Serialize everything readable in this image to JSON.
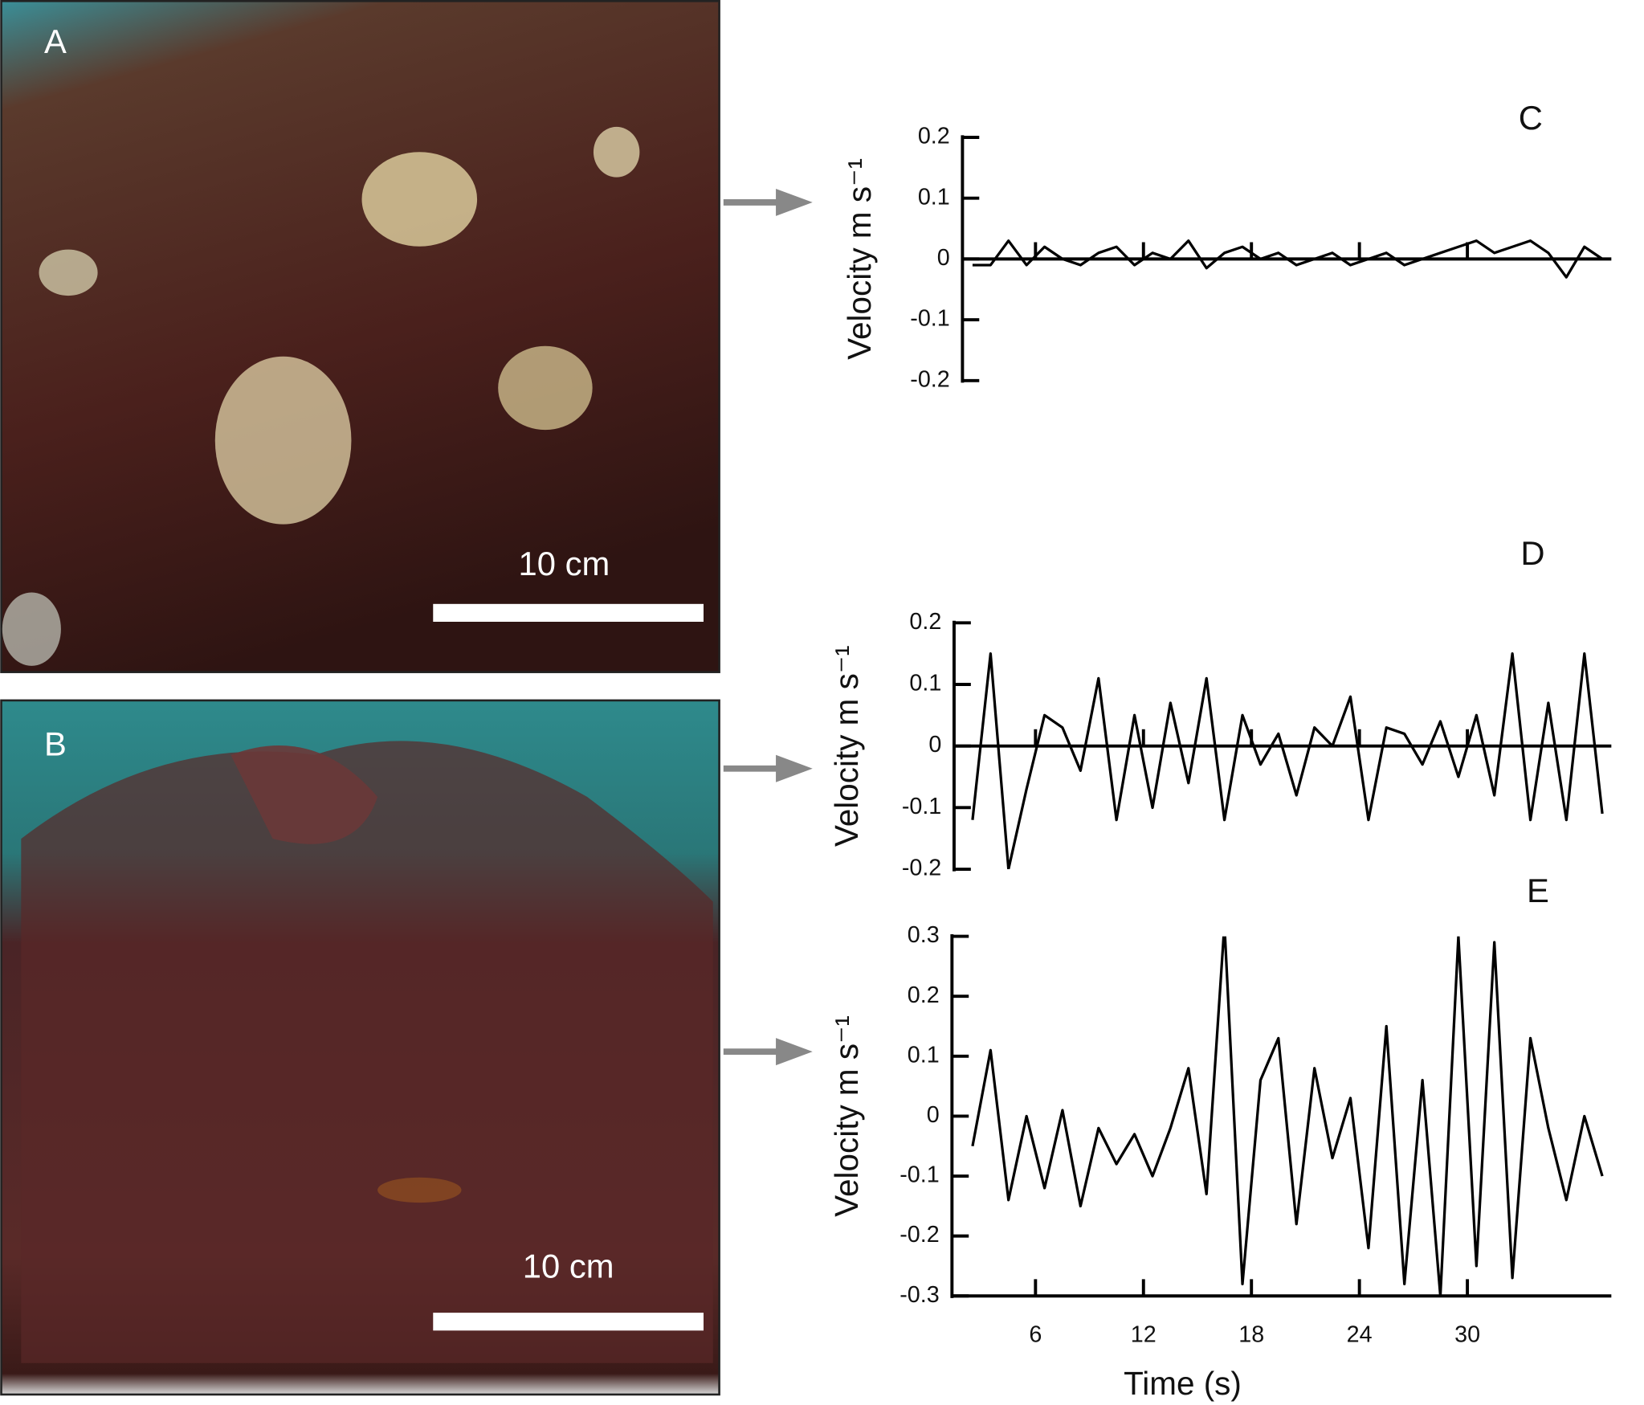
{
  "panels": [
    {
      "label": "A",
      "scale_bar": "10 cm"
    },
    {
      "label": "B",
      "scale_bar": "10 cm"
    }
  ],
  "chart_data": [
    {
      "type": "line",
      "title": "C",
      "y_label": "Velocity m s⁻¹",
      "ylim": [
        -0.2,
        0.2
      ],
      "yticks": [
        -0.2,
        -0.1,
        0,
        0.1,
        0.2
      ],
      "xlim": [
        2,
        38
      ],
      "xticks": [
        6,
        12,
        18,
        24,
        30
      ],
      "x": [
        2.5,
        3.5,
        4.5,
        5.5,
        6.5,
        7.5,
        8.5,
        9.5,
        10.5,
        11.5,
        12.5,
        13.5,
        14.5,
        15.5,
        16.5,
        17.5,
        18.5,
        19.5,
        20.5,
        21.5,
        22.5,
        23.5,
        24.5,
        25.5,
        26.5,
        27.5,
        28.5,
        29.5,
        30.5,
        31.5,
        32.5,
        33.5,
        34.5,
        35.5,
        36.5,
        37.5
      ],
      "series": [
        {
          "color": "#000000",
          "values": [
            -0.01,
            -0.01,
            0.03,
            -0.01,
            0.02,
            0.0,
            -0.01,
            0.01,
            0.02,
            -0.01,
            0.01,
            0.0,
            0.03,
            -0.015,
            0.01,
            0.02,
            0.0,
            0.01,
            -0.01,
            0.0,
            0.01,
            -0.01,
            0.0,
            0.01,
            -0.01,
            0.0,
            0.01,
            0.02,
            0.03,
            0.01,
            0.02,
            0.03,
            0.01,
            -0.03,
            0.02,
            0.0
          ]
        }
      ]
    },
    {
      "type": "line",
      "title": "D",
      "y_label": "Velocity m s⁻¹",
      "ylim": [
        -0.2,
        0.2
      ],
      "yticks": [
        -0.2,
        -0.1,
        0,
        0.1,
        0.2
      ],
      "xlim": [
        2,
        38
      ],
      "xticks": [
        6,
        12,
        18,
        24,
        30
      ],
      "x": [
        2.5,
        3.5,
        4.5,
        5.5,
        6.5,
        7.5,
        8.5,
        9.5,
        10.5,
        11.5,
        12.5,
        13.5,
        14.5,
        15.5,
        16.5,
        17.5,
        18.5,
        19.5,
        20.5,
        21.5,
        22.5,
        23.5,
        24.5,
        25.5,
        26.5,
        27.5,
        28.5,
        29.5,
        30.5,
        31.5,
        32.5,
        33.5,
        34.5,
        35.5,
        36.5,
        37.5
      ],
      "series": [
        {
          "color": "#000000",
          "values": [
            -0.12,
            0.15,
            -0.2,
            -0.07,
            0.05,
            0.03,
            -0.04,
            0.11,
            -0.12,
            0.05,
            -0.1,
            0.07,
            -0.06,
            0.11,
            -0.12,
            0.05,
            -0.03,
            0.02,
            -0.08,
            0.03,
            0.0,
            0.08,
            -0.12,
            0.03,
            0.02,
            -0.03,
            0.04,
            -0.05,
            0.05,
            -0.08,
            0.15,
            -0.12,
            0.07,
            -0.12,
            0.15,
            -0.11
          ]
        }
      ]
    },
    {
      "type": "line",
      "title": "E",
      "y_label": "Velocity m s⁻¹",
      "x_label": "Time (s)",
      "ylim": [
        -0.3,
        0.3
      ],
      "yticks": [
        -0.3,
        -0.2,
        -0.1,
        0,
        0.1,
        0.2,
        0.3
      ],
      "xlim": [
        2,
        38
      ],
      "xticks": [
        6,
        12,
        18,
        24,
        30
      ],
      "x": [
        2.5,
        3.5,
        4.5,
        5.5,
        6.5,
        7.5,
        8.5,
        9.5,
        10.5,
        11.5,
        12.5,
        13.5,
        14.5,
        15.5,
        16.5,
        17.5,
        18.5,
        19.5,
        20.5,
        21.5,
        22.5,
        23.5,
        24.5,
        25.5,
        26.5,
        27.5,
        28.5,
        29.5,
        30.5,
        31.5,
        32.5,
        33.5,
        34.5,
        35.5,
        36.5,
        37.5
      ],
      "series": [
        {
          "color": "#000000",
          "values": [
            -0.05,
            0.11,
            -0.14,
            0.0,
            -0.12,
            0.01,
            -0.15,
            -0.02,
            -0.08,
            -0.03,
            -0.1,
            -0.02,
            0.08,
            -0.13,
            0.32,
            -0.28,
            0.06,
            0.13,
            -0.18,
            0.08,
            -0.07,
            0.03,
            -0.22,
            0.15,
            -0.28,
            0.06,
            -0.3,
            0.3,
            -0.25,
            0.29,
            -0.27,
            0.13,
            -0.02,
            -0.14,
            0.0,
            -0.1
          ]
        }
      ]
    }
  ]
}
